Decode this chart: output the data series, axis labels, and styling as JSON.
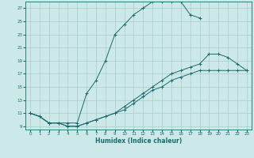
{
  "xlabel": "Humidex (Indice chaleur)",
  "bg_color": "#cce8e8",
  "line_color": "#1a6b6b",
  "grid_color": "#aacccc",
  "xlim": [
    -0.5,
    23.5
  ],
  "ylim": [
    8.5,
    28
  ],
  "xticks": [
    0,
    1,
    2,
    3,
    4,
    5,
    6,
    7,
    8,
    9,
    10,
    11,
    12,
    13,
    14,
    15,
    16,
    17,
    18,
    19,
    20,
    21,
    22,
    23
  ],
  "yticks": [
    9,
    11,
    13,
    15,
    17,
    19,
    21,
    23,
    25,
    27
  ],
  "curve1_x": [
    0,
    1,
    2,
    3,
    4,
    5,
    6,
    7,
    8,
    9,
    10,
    11,
    12,
    13,
    14,
    15,
    16,
    17,
    18
  ],
  "curve1_y": [
    11,
    10.5,
    9.5,
    9.5,
    9.5,
    9.5,
    14,
    16,
    19,
    23,
    24.5,
    26,
    27,
    28,
    28,
    28,
    28,
    26,
    25.5
  ],
  "curve2_x": [
    0,
    1,
    2,
    3,
    4,
    5,
    6,
    7,
    8,
    9,
    10,
    11,
    12,
    13,
    14,
    15,
    16,
    17,
    18,
    19,
    20,
    21,
    22,
    23
  ],
  "curve2_y": [
    11,
    10.5,
    9.5,
    9.5,
    9.0,
    9.0,
    9.5,
    10,
    10.5,
    11,
    12,
    13,
    14,
    15,
    16,
    17,
    17.5,
    18,
    18.5,
    20,
    20,
    19.5,
    18.5,
    17.5
  ],
  "curve3_x": [
    0,
    1,
    2,
    3,
    4,
    5,
    6,
    7,
    8,
    9,
    10,
    11,
    12,
    13,
    14,
    15,
    16,
    17,
    18,
    19,
    20,
    21,
    22,
    23
  ],
  "curve3_y": [
    11,
    10.5,
    9.5,
    9.5,
    9.0,
    9.0,
    9.5,
    10,
    10.5,
    11,
    11.5,
    12.5,
    13.5,
    14.5,
    15,
    16,
    16.5,
    17,
    17.5,
    17.5,
    17.5,
    17.5,
    17.5,
    17.5
  ]
}
